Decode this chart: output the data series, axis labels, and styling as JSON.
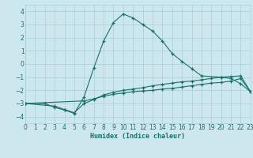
{
  "xlabel": "Humidex (Indice chaleur)",
  "background_color": "#cce8ee",
  "grid_color": "#aacdd6",
  "line_color": "#1a7068",
  "xlim": [
    0,
    23
  ],
  "ylim": [
    -4.5,
    4.5
  ],
  "xticks": [
    0,
    1,
    2,
    3,
    4,
    5,
    6,
    7,
    8,
    9,
    10,
    11,
    12,
    13,
    14,
    15,
    16,
    17,
    18,
    19,
    20,
    21,
    22,
    23
  ],
  "yticks": [
    -4,
    -3,
    -2,
    -1,
    0,
    1,
    2,
    3,
    4
  ],
  "series": [
    {
      "x": [
        0,
        2,
        3,
        4,
        5,
        6,
        7,
        8,
        9,
        10,
        11,
        12,
        13,
        14,
        15,
        16,
        17,
        18,
        20,
        21,
        22,
        23
      ],
      "y": [
        -3.0,
        -3.0,
        -3.3,
        -3.5,
        -3.75,
        -2.5,
        -0.3,
        1.75,
        3.15,
        3.8,
        3.5,
        3.0,
        2.5,
        1.75,
        0.8,
        0.2,
        -0.35,
        -0.9,
        -1.0,
        -1.1,
        -1.5,
        -2.1
      ]
    },
    {
      "x": [
        0,
        6,
        7,
        8,
        9,
        10,
        11,
        12,
        13,
        14,
        15,
        16,
        17,
        18,
        19,
        20,
        21,
        22,
        23
      ],
      "y": [
        -3.0,
        -2.8,
        -2.65,
        -2.45,
        -2.3,
        -2.2,
        -2.1,
        -2.05,
        -2.0,
        -1.9,
        -1.85,
        -1.75,
        -1.65,
        -1.55,
        -1.45,
        -1.4,
        -1.3,
        -1.1,
        -2.1
      ]
    },
    {
      "x": [
        0,
        3,
        4,
        5,
        6,
        7,
        8,
        9,
        10,
        11,
        12,
        13,
        14,
        15,
        16,
        17,
        18,
        19,
        20,
        21,
        22,
        23
      ],
      "y": [
        -3.0,
        -3.2,
        -3.45,
        -3.7,
        -3.0,
        -2.7,
        -2.35,
        -2.15,
        -2.0,
        -1.9,
        -1.8,
        -1.65,
        -1.55,
        -1.45,
        -1.35,
        -1.3,
        -1.2,
        -1.1,
        -1.0,
        -0.95,
        -0.9,
        -2.1
      ]
    }
  ]
}
